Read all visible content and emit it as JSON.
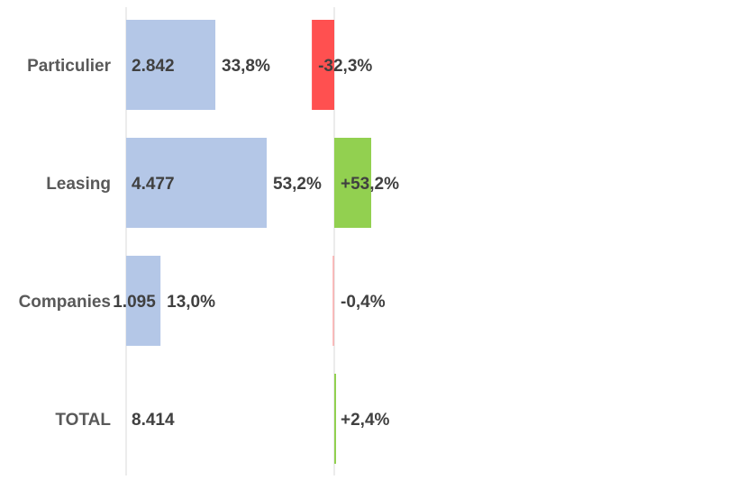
{
  "chart_data": {
    "type": "bar",
    "orientation": "horizontal",
    "categories": [
      "Particulier",
      "Leasing",
      "Companies",
      "TOTAL"
    ],
    "series": [
      {
        "values": [
          2842,
          4477,
          1095,
          8414
        ],
        "value_labels": [
          "2.842",
          "4.477",
          "1.095",
          "8.414"
        ],
        "share_labels": [
          "33,8%",
          "53,2%",
          "13,0%",
          ""
        ],
        "color": "#b4c7e7"
      },
      {
        "values": [
          -32.3,
          53.2,
          -0.4,
          2.4
        ],
        "value_labels": [
          "-32,3%",
          "+53,2%",
          "-0,4%",
          "+2,4%"
        ],
        "positive_color": "#92d050",
        "negative_color": "#ff5050"
      }
    ],
    "grid": false,
    "legend": "none"
  }
}
